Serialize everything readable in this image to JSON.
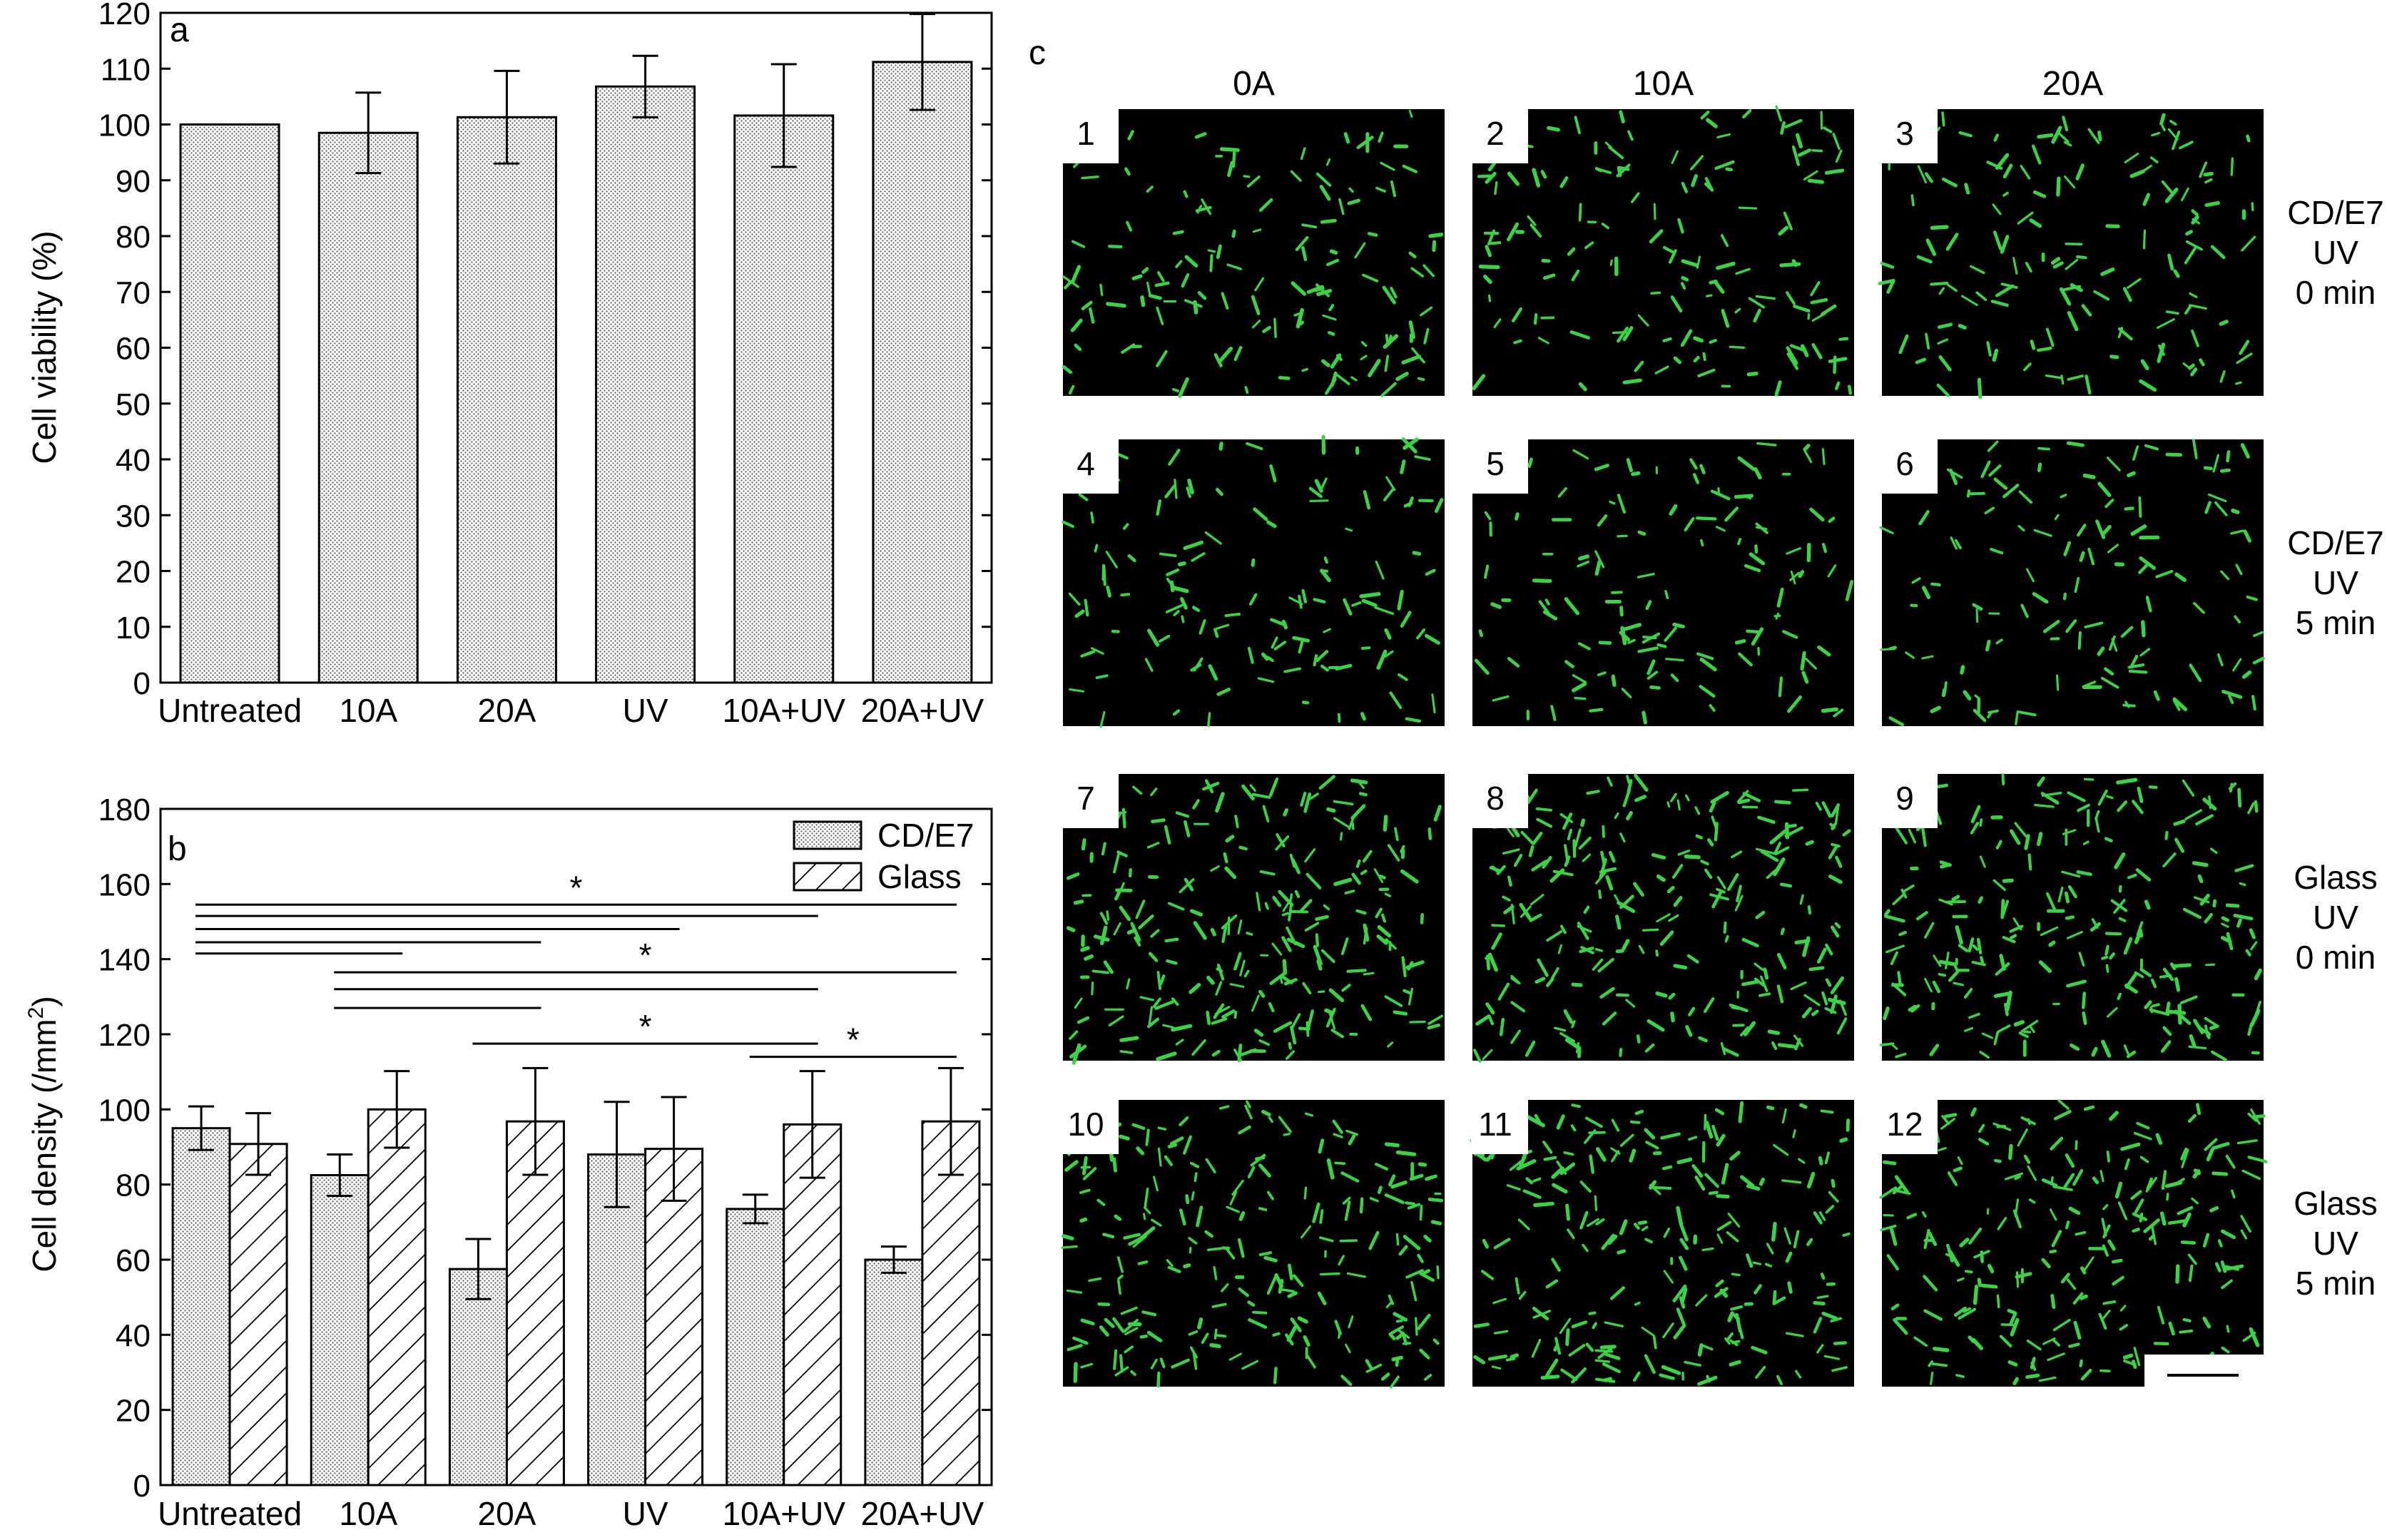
{
  "chart_data": [
    {
      "type": "bar",
      "panel_label": "a",
      "categories": [
        "Untreated",
        "10A",
        "20A",
        "UV",
        "10A+UV",
        "20A+UV"
      ],
      "values": [
        100,
        98.5,
        101.3,
        106.8,
        101.6,
        111.2
      ],
      "errors": [
        0,
        7.2,
        8.3,
        5.5,
        9.2,
        8.6
      ],
      "ylabel": "Cell viability (%)",
      "ylim": [
        0,
        120
      ],
      "yticks": [
        0,
        10,
        20,
        30,
        40,
        50,
        60,
        70,
        80,
        90,
        100,
        110,
        120
      ],
      "pattern": "dots",
      "legend": "none"
    },
    {
      "type": "bar",
      "panel_label": "b",
      "categories": [
        "Untreated",
        "10A",
        "20A",
        "UV",
        "10A+UV",
        "20A+UV"
      ],
      "ylabel_prefix": "Cell density (/mm",
      "ylabel_sup": "2",
      "ylabel_suffix": ")",
      "ylim": [
        0,
        180
      ],
      "yticks": [
        0,
        20,
        40,
        60,
        80,
        100,
        120,
        140,
        160,
        180
      ],
      "legend": "top-right",
      "series": [
        {
          "name": "CD/E7",
          "pattern": "dots",
          "values": [
            95,
            82.5,
            57.5,
            88,
            73.5,
            60
          ],
          "errors": [
            5.8,
            5.5,
            8,
            14,
            3.8,
            3.5
          ]
        },
        {
          "name": "Glass",
          "pattern": "hatch",
          "values": [
            90.8,
            100,
            96.8,
            89.5,
            96,
            96.8
          ],
          "errors": [
            8.2,
            10.2,
            14.2,
            13.8,
            14.2,
            14.2
          ]
        }
      ],
      "significance": [
        {
          "from": 0,
          "to": 5,
          "y": 154.5,
          "star": "*"
        },
        {
          "from": 0,
          "to": 4,
          "y": 151.5,
          "star": ""
        },
        {
          "from": 0,
          "to": 3,
          "y": 148,
          "star": ""
        },
        {
          "from": 0,
          "to": 2,
          "y": 144.5,
          "star": ""
        },
        {
          "from": 0,
          "to": 1,
          "y": 141.5,
          "star": ""
        },
        {
          "from": 1,
          "to": 5,
          "y": 136.5,
          "star": "*"
        },
        {
          "from": 1,
          "to": 4,
          "y": 132,
          "star": ""
        },
        {
          "from": 1,
          "to": 2,
          "y": 127,
          "star": ""
        },
        {
          "from": 2,
          "to": 4,
          "y": 117.5,
          "star": "*"
        },
        {
          "from": 4,
          "to": 5,
          "y": 114,
          "star": "*"
        }
      ]
    }
  ],
  "panel_c": {
    "label": "c",
    "columns": [
      "0A",
      "10A",
      "20A"
    ],
    "rows": [
      {
        "label_lines": [
          "CD/E7",
          "UV",
          "0 min"
        ],
        "tiles": [
          "1",
          "2",
          "3"
        ],
        "density": 0.55
      },
      {
        "label_lines": [
          "CD/E7",
          "UV",
          "5 min"
        ],
        "tiles": [
          "4",
          "5",
          "6"
        ],
        "density": 0.5
      },
      {
        "label_lines": [
          "Glass",
          "UV",
          "0 min"
        ],
        "tiles": [
          "7",
          "8",
          "9"
        ],
        "density": 0.9
      },
      {
        "label_lines": [
          "Glass",
          "UV",
          "5 min"
        ],
        "tiles": [
          "10",
          "11",
          "12"
        ],
        "density": 0.85
      }
    ],
    "cell_color": "#3cd246",
    "background_color": "#000000"
  }
}
